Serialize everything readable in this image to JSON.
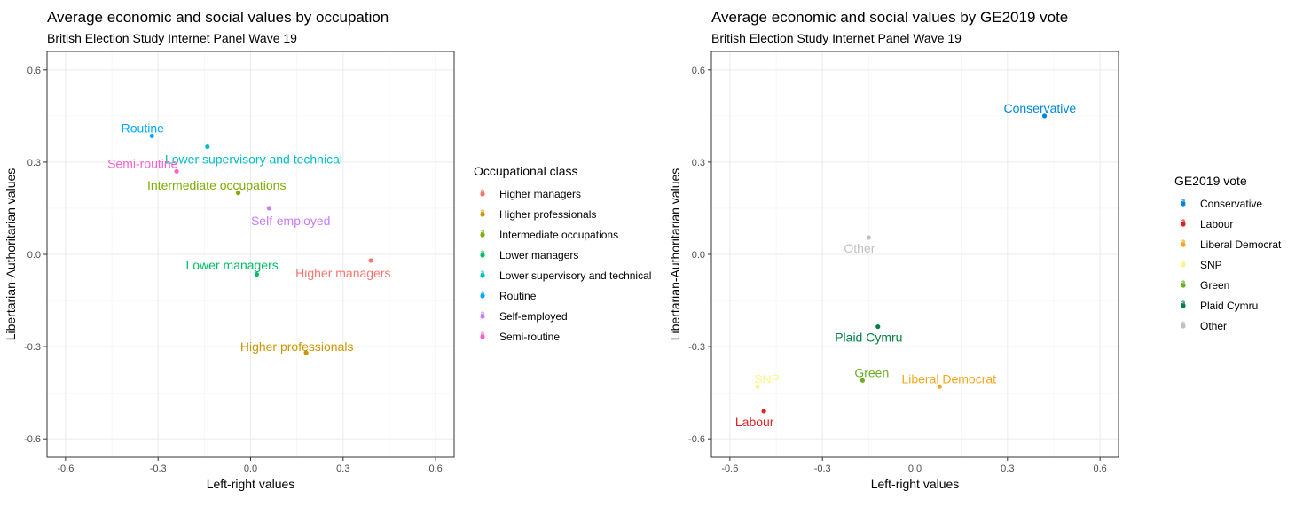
{
  "chart_data": [
    {
      "type": "scatter",
      "title": "Average economic and social values by occupation",
      "subtitle": "British Election Study Internet Panel Wave 19",
      "xlabel": "Left-right values",
      "ylabel": "Libertarian-Authoritarian values",
      "xlim": [
        -0.66,
        0.66
      ],
      "ylim": [
        -0.66,
        0.66
      ],
      "xticks": [
        -0.6,
        -0.3,
        0.0,
        0.3,
        0.6
      ],
      "yticks": [
        -0.6,
        -0.3,
        0.0,
        0.3,
        0.6
      ],
      "xtick_labels": [
        "-0.6",
        "-0.3",
        "0.0",
        "0.3",
        "0.6"
      ],
      "ytick_labels": [
        "-0.6",
        "-0.3",
        "0.0",
        "0.3",
        "0.6"
      ],
      "grid": true,
      "legend_title": "Occupational class",
      "legend_position": "right",
      "points": [
        {
          "name": "Higher managers",
          "x": 0.39,
          "y": -0.02,
          "color": "#F8766D",
          "label_dx": -0.09,
          "label_dy": -0.04
        },
        {
          "name": "Higher professionals",
          "x": 0.18,
          "y": -0.32,
          "color": "#CD9600",
          "label_dx": -0.03,
          "label_dy": 0.02
        },
        {
          "name": "Intermediate occupations",
          "x": -0.04,
          "y": 0.2,
          "color": "#7CAE00",
          "label_dx": -0.07,
          "label_dy": 0.025
        },
        {
          "name": "Lower managers",
          "x": 0.02,
          "y": -0.065,
          "color": "#00BE67",
          "label_dx": -0.08,
          "label_dy": 0.03
        },
        {
          "name": "Lower supervisory and technical",
          "x": -0.14,
          "y": 0.35,
          "color": "#00BFC4",
          "label_dx": 0.15,
          "label_dy": -0.04
        },
        {
          "name": "Routine",
          "x": -0.32,
          "y": 0.385,
          "color": "#00A9FF",
          "label_dx": -0.03,
          "label_dy": 0.025
        },
        {
          "name": "Self-employed",
          "x": 0.06,
          "y": 0.15,
          "color": "#C77CFF",
          "label_dx": 0.07,
          "label_dy": -0.04
        },
        {
          "name": "Semi-routine",
          "x": -0.24,
          "y": 0.27,
          "color": "#FF61CC",
          "label_dx": -0.11,
          "label_dy": 0.025
        }
      ]
    },
    {
      "type": "scatter",
      "title": "Average economic and social values by GE2019 vote",
      "subtitle": "British Election Study Internet Panel Wave 19",
      "xlabel": "Left-right values",
      "ylabel": "Libertarian-Authoritarian values",
      "xlim": [
        -0.66,
        0.66
      ],
      "ylim": [
        -0.66,
        0.66
      ],
      "xticks": [
        -0.6,
        -0.3,
        0.0,
        0.3,
        0.6
      ],
      "yticks": [
        -0.6,
        -0.3,
        0.0,
        0.3,
        0.6
      ],
      "xtick_labels": [
        "-0.6",
        "-0.3",
        "0.0",
        "0.3",
        "0.6"
      ],
      "ytick_labels": [
        "-0.6",
        "-0.3",
        "0.0",
        "0.3",
        "0.6"
      ],
      "grid": true,
      "legend_title": "GE2019 vote",
      "legend_position": "right",
      "points": [
        {
          "name": "Conservative",
          "x": 0.42,
          "y": 0.45,
          "color": "#0087DC",
          "label_dx": -0.015,
          "label_dy": 0.025
        },
        {
          "name": "Labour",
          "x": -0.49,
          "y": -0.51,
          "color": "#DC241F",
          "label_dx": -0.03,
          "label_dy": -0.035
        },
        {
          "name": "Liberal Democrat",
          "x": 0.08,
          "y": -0.43,
          "color": "#FAA61A",
          "label_dx": 0.03,
          "label_dy": 0.025
        },
        {
          "name": "SNP",
          "x": -0.51,
          "y": -0.43,
          "color": "#FDF38E",
          "label_dx": 0.03,
          "label_dy": 0.025
        },
        {
          "name": "Green",
          "x": -0.17,
          "y": -0.41,
          "color": "#6AB023",
          "label_dx": 0.03,
          "label_dy": 0.025
        },
        {
          "name": "Plaid Cymru",
          "x": -0.12,
          "y": -0.235,
          "color": "#008142",
          "label_dx": -0.03,
          "label_dy": -0.035
        },
        {
          "name": "Other",
          "x": -0.15,
          "y": 0.055,
          "color": "#C0C0C0",
          "label_dx": -0.03,
          "label_dy": -0.035
        }
      ]
    }
  ]
}
